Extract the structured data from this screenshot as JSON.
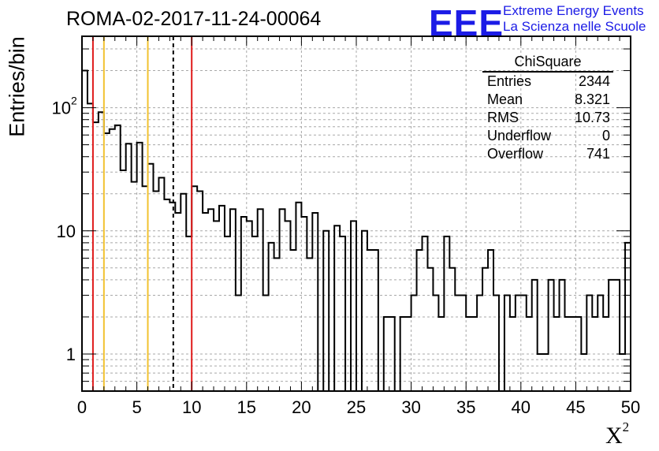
{
  "header": {
    "title": "ROMA-02-2017-11-24-00064",
    "logo_text": "EEE",
    "logo_line1": "Extreme Energy Events",
    "logo_line2": "La Scienza nelle Scuole"
  },
  "stats": {
    "title": "ChiSquare",
    "rows": [
      {
        "label": "Entries",
        "value": "2344"
      },
      {
        "label": "Mean",
        "value": "8.321"
      },
      {
        "label": "RMS",
        "value": "10.73"
      },
      {
        "label": "Underflow",
        "value": "0"
      },
      {
        "label": "Overflow",
        "value": "741"
      }
    ]
  },
  "colors": {
    "red": "#e01b1b",
    "yellow": "#f2c230",
    "black": "#000000",
    "grid": "#a8a8a8",
    "logo": "#1b1be6"
  },
  "chart_data": {
    "type": "histogram",
    "ylabel": "Entries/bin",
    "xlabel": "X",
    "xlabel_sup": "2",
    "xlim": [
      0,
      50
    ],
    "ylim": [
      0.5,
      380
    ],
    "log_y": true,
    "grid": true,
    "bin_width": 0.5,
    "x_ticks": [
      0,
      5,
      10,
      15,
      20,
      25,
      30,
      35,
      40,
      45,
      50
    ],
    "y_ticks": [
      {
        "value": 1,
        "label": "1"
      },
      {
        "value": 10,
        "label": "10"
      },
      {
        "value": 100,
        "label": "10",
        "sup": "2"
      }
    ],
    "values": [
      200,
      108,
      76,
      92,
      62,
      67,
      72,
      31,
      51,
      25,
      52,
      23,
      35,
      21,
      27,
      18,
      17,
      14,
      20,
      9,
      23,
      21,
      14,
      15,
      12,
      16,
      9,
      15,
      3,
      13,
      12,
      9,
      15,
      3,
      8,
      6,
      15,
      12,
      7,
      17,
      13,
      6,
      14,
      0.5,
      10,
      0.5,
      11,
      9,
      0.5,
      12,
      0.5,
      10,
      7,
      7,
      0.5,
      2,
      2,
      0.5,
      2,
      2,
      3,
      7,
      9,
      5,
      3,
      2,
      9,
      5,
      3,
      3,
      2,
      2,
      3,
      5,
      7,
      3,
      0.5,
      3,
      2,
      3,
      3,
      2,
      4,
      1,
      1,
      4,
      2,
      4,
      2,
      2,
      2,
      1,
      3,
      2,
      3,
      2,
      4,
      4,
      1,
      8
    ],
    "overflow_last_bin": [
      0.5,
      8
    ],
    "vertical_lines": [
      {
        "x": 1,
        "color": "red",
        "style": "solid"
      },
      {
        "x": 2,
        "color": "yellow",
        "style": "solid"
      },
      {
        "x": 6,
        "color": "yellow",
        "style": "solid"
      },
      {
        "x": 8.321,
        "color": "black",
        "style": "dashed"
      },
      {
        "x": 10,
        "color": "red",
        "style": "solid"
      }
    ]
  }
}
